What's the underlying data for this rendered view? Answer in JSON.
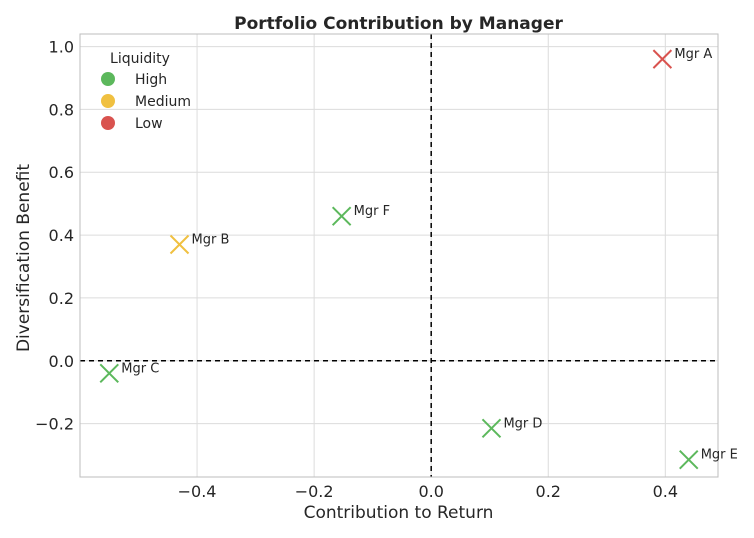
{
  "chart_data": {
    "type": "scatter",
    "title": "Portfolio Contribution by Manager",
    "xlabel": "Contribution to Return",
    "ylabel": "Diversification Benefit",
    "xlim": [
      -0.6,
      0.49
    ],
    "ylim": [
      -0.37,
      1.04
    ],
    "xticks": [
      -0.4,
      -0.2,
      0.0,
      0.2,
      0.4
    ],
    "xtick_labels": [
      "−0.4",
      "−0.2",
      "0.0",
      "0.2",
      "0.4"
    ],
    "yticks": [
      -0.2,
      0.0,
      0.2,
      0.4,
      0.6,
      0.8,
      1.0
    ],
    "ytick_labels": [
      "−0.2",
      "0.0",
      "0.2",
      "0.4",
      "0.6",
      "0.8",
      "1.0"
    ],
    "grid": true,
    "reference_lines": {
      "x": 0.0,
      "y": 0.0
    },
    "marker": "x",
    "legend": {
      "title": "Liquidity",
      "placement": "top-left",
      "entries": [
        {
          "label": "High",
          "color": "#5cb85c"
        },
        {
          "label": "Medium",
          "color": "#f0c040"
        },
        {
          "label": "Low",
          "color": "#d9534f"
        }
      ]
    },
    "points": [
      {
        "label": "Mgr A",
        "x": 0.395,
        "y": 0.96,
        "liquidity": "Low"
      },
      {
        "label": "Mgr B",
        "x": -0.43,
        "y": 0.37,
        "liquidity": "Medium"
      },
      {
        "label": "Mgr C",
        "x": -0.55,
        "y": -0.04,
        "liquidity": "High"
      },
      {
        "label": "Mgr D",
        "x": 0.103,
        "y": -0.215,
        "liquidity": "High"
      },
      {
        "label": "Mgr E",
        "x": 0.44,
        "y": -0.315,
        "liquidity": "High"
      },
      {
        "label": "Mgr F",
        "x": -0.153,
        "y": 0.46,
        "liquidity": "High"
      }
    ]
  }
}
